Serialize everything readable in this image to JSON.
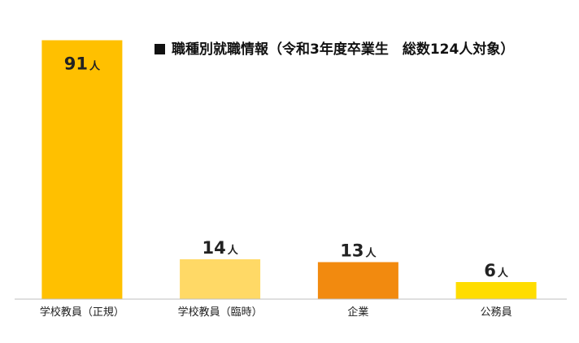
{
  "chart_data": {
    "type": "bar",
    "title": "職種別就職情報（令和3年度卒業生　総数124人対象）",
    "categories": [
      "学校教員（正規）",
      "学校教員（臨時）",
      "企業",
      "公務員"
    ],
    "values": [
      91,
      14,
      13,
      6
    ],
    "value_unit": "人",
    "colors": [
      "#FFC000",
      "#FFD966",
      "#F28A0F",
      "#FFDD00"
    ],
    "ylim": [
      0,
      100
    ],
    "grid": false,
    "legend": "none"
  }
}
